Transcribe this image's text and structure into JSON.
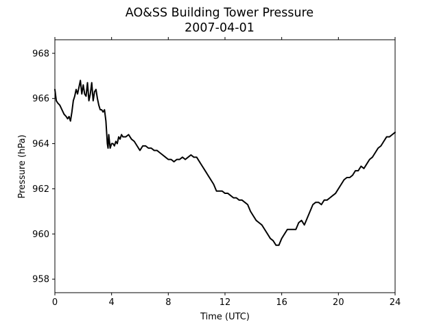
{
  "chart_data": {
    "type": "line",
    "title": "AO&SS Building Tower Pressure",
    "subtitle": "2007-04-01",
    "xlabel": "Time (UTC)",
    "ylabel": "Pressure (hPa)",
    "xlim": [
      0,
      24
    ],
    "ylim": [
      957.4,
      968.6
    ],
    "xticks": [
      0,
      4,
      8,
      12,
      16,
      20,
      24
    ],
    "yticks": [
      958,
      960,
      962,
      964,
      966,
      968
    ],
    "grid": false,
    "legend": "none",
    "series": [
      {
        "color": "#000000",
        "x": [
          0.0,
          0.1,
          0.2,
          0.35,
          0.5,
          0.65,
          0.8,
          0.9,
          1.0,
          1.1,
          1.2,
          1.3,
          1.4,
          1.5,
          1.6,
          1.7,
          1.8,
          1.9,
          2.0,
          2.1,
          2.2,
          2.3,
          2.4,
          2.5,
          2.6,
          2.7,
          2.8,
          2.9,
          3.0,
          3.1,
          3.2,
          3.3,
          3.4,
          3.5,
          3.6,
          3.7,
          3.75,
          3.8,
          3.9,
          4.0,
          4.1,
          4.2,
          4.3,
          4.4,
          4.5,
          4.6,
          4.7,
          4.8,
          5.0,
          5.2,
          5.4,
          5.6,
          5.8,
          6.0,
          6.2,
          6.4,
          6.6,
          6.8,
          7.0,
          7.2,
          7.4,
          7.6,
          7.8,
          8.0,
          8.2,
          8.4,
          8.6,
          8.8,
          9.0,
          9.2,
          9.4,
          9.6,
          9.8,
          10.0,
          10.2,
          10.4,
          10.6,
          10.8,
          11.0,
          11.2,
          11.4,
          11.6,
          11.8,
          12.0,
          12.2,
          12.4,
          12.6,
          12.8,
          13.0,
          13.2,
          13.4,
          13.6,
          13.8,
          14.0,
          14.2,
          14.4,
          14.6,
          14.8,
          15.0,
          15.2,
          15.4,
          15.6,
          15.8,
          16.0,
          16.2,
          16.4,
          16.6,
          16.8,
          17.0,
          17.2,
          17.4,
          17.6,
          17.8,
          18.0,
          18.2,
          18.4,
          18.6,
          18.8,
          19.0,
          19.2,
          19.4,
          19.6,
          19.8,
          20.0,
          20.2,
          20.4,
          20.6,
          20.8,
          21.0,
          21.2,
          21.4,
          21.6,
          21.8,
          22.0,
          22.2,
          22.4,
          22.6,
          22.8,
          23.0,
          23.2,
          23.4,
          23.6,
          23.8,
          24.0
        ],
        "y": [
          966.4,
          965.9,
          965.8,
          965.7,
          965.5,
          965.3,
          965.2,
          965.1,
          965.2,
          965.0,
          965.4,
          965.9,
          966.1,
          966.4,
          966.2,
          966.5,
          966.8,
          966.2,
          966.6,
          966.2,
          966.1,
          966.7,
          965.9,
          966.2,
          966.7,
          965.9,
          966.3,
          966.4,
          966.0,
          965.7,
          965.5,
          965.5,
          965.4,
          965.5,
          965.0,
          964.0,
          963.8,
          964.4,
          963.8,
          964.0,
          964.0,
          963.9,
          964.1,
          964.0,
          964.3,
          964.2,
          964.4,
          964.3,
          964.3,
          964.4,
          964.2,
          964.1,
          963.9,
          963.7,
          963.9,
          963.9,
          963.8,
          963.8,
          963.7,
          963.7,
          963.6,
          963.5,
          963.4,
          963.3,
          963.3,
          963.2,
          963.3,
          963.3,
          963.4,
          963.3,
          963.4,
          963.5,
          963.4,
          963.4,
          963.2,
          963.0,
          962.8,
          962.6,
          962.4,
          962.2,
          961.9,
          961.9,
          961.9,
          961.8,
          961.8,
          961.7,
          961.6,
          961.6,
          961.5,
          961.5,
          961.4,
          961.3,
          961.0,
          960.8,
          960.6,
          960.5,
          960.4,
          960.2,
          960.0,
          959.8,
          959.7,
          959.5,
          959.5,
          959.8,
          960.0,
          960.2,
          960.2,
          960.2,
          960.2,
          960.5,
          960.6,
          960.4,
          960.7,
          961.0,
          961.3,
          961.4,
          961.4,
          961.3,
          961.5,
          961.5,
          961.6,
          961.7,
          961.8,
          962.0,
          962.2,
          962.4,
          962.5,
          962.5,
          962.6,
          962.8,
          962.8,
          963.0,
          962.9,
          963.1,
          963.3,
          963.4,
          963.6,
          963.8,
          963.9,
          964.1,
          964.3,
          964.3,
          964.4,
          964.5
        ]
      }
    ]
  }
}
